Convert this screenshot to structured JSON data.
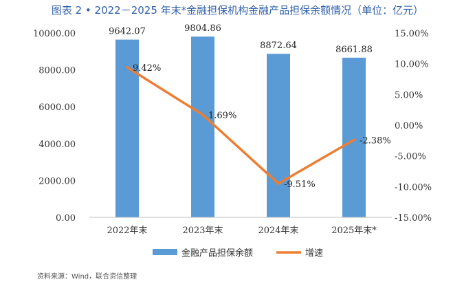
{
  "chart_data": {
    "type": "bar",
    "title": "图表 2 • 2022－2025 年末*金融担保机构金融产品担保余额情况（单位：亿元）",
    "categories": [
      "2022年末",
      "2023年末",
      "2024年末",
      "2025年末*"
    ],
    "series": [
      {
        "name": "金融产品担保余额",
        "type": "bar",
        "axis": "left",
        "color": "#5b9bd5",
        "values": [
          9642.07,
          9804.86,
          8872.64,
          8661.88
        ],
        "labels": [
          "9642.07",
          "9804.86",
          "8872.64",
          "8661.88"
        ]
      },
      {
        "name": "增速",
        "type": "line",
        "axis": "right",
        "color": "#ed7d31",
        "values": [
          9.42,
          1.69,
          -9.51,
          -2.38
        ],
        "labels": [
          "9.42%",
          "1.69%",
          "-9.51%",
          "-2.38%"
        ]
      }
    ],
    "y_left": {
      "ylim": [
        0,
        10000
      ],
      "ticks": [
        "0.00",
        "2000.00",
        "4000.00",
        "6000.00",
        "8000.00",
        "10000.00"
      ]
    },
    "y_right": {
      "ylim": [
        -15,
        15
      ],
      "ticks": [
        "-15.00%",
        "-10.00%",
        "-5.00%",
        "0.00%",
        "5.00%",
        "10.00%",
        "15.00%"
      ]
    },
    "grid": false,
    "legend": "bottom"
  },
  "source": "资料来源：Wind，联合资信整理"
}
